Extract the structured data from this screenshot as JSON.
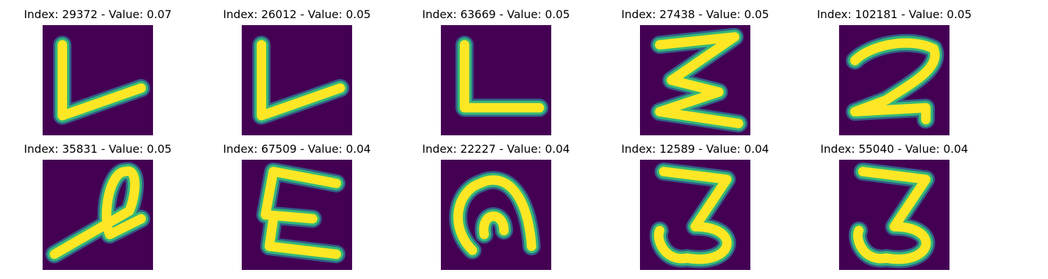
{
  "palette": {
    "background": "#440154",
    "low": "#31688e",
    "mid": "#35b779",
    "high": "#fde725"
  },
  "panels": [
    {
      "title": "Index: 29372 - Value: 0.07",
      "glyph": "L-slanted"
    },
    {
      "title": "Index: 26012 - Value: 0.05",
      "glyph": "L-slanted"
    },
    {
      "title": "Index: 63669 - Value: 0.05",
      "glyph": "L"
    },
    {
      "title": "Index: 27438 - Value: 0.05",
      "glyph": "zigzag-E"
    },
    {
      "title": "Index: 102181 - Value: 0.05",
      "glyph": "2"
    },
    {
      "title": "Index: 35831 - Value: 0.05",
      "glyph": "looped-stroke"
    },
    {
      "title": "Index: 67509 - Value: 0.04",
      "glyph": "E"
    },
    {
      "title": "Index: 22227 - Value: 0.04",
      "glyph": "arch"
    },
    {
      "title": "Index: 12589 - Value: 0.04",
      "glyph": "3"
    },
    {
      "title": "Index: 55040 - Value: 0.04",
      "glyph": "3"
    }
  ]
}
